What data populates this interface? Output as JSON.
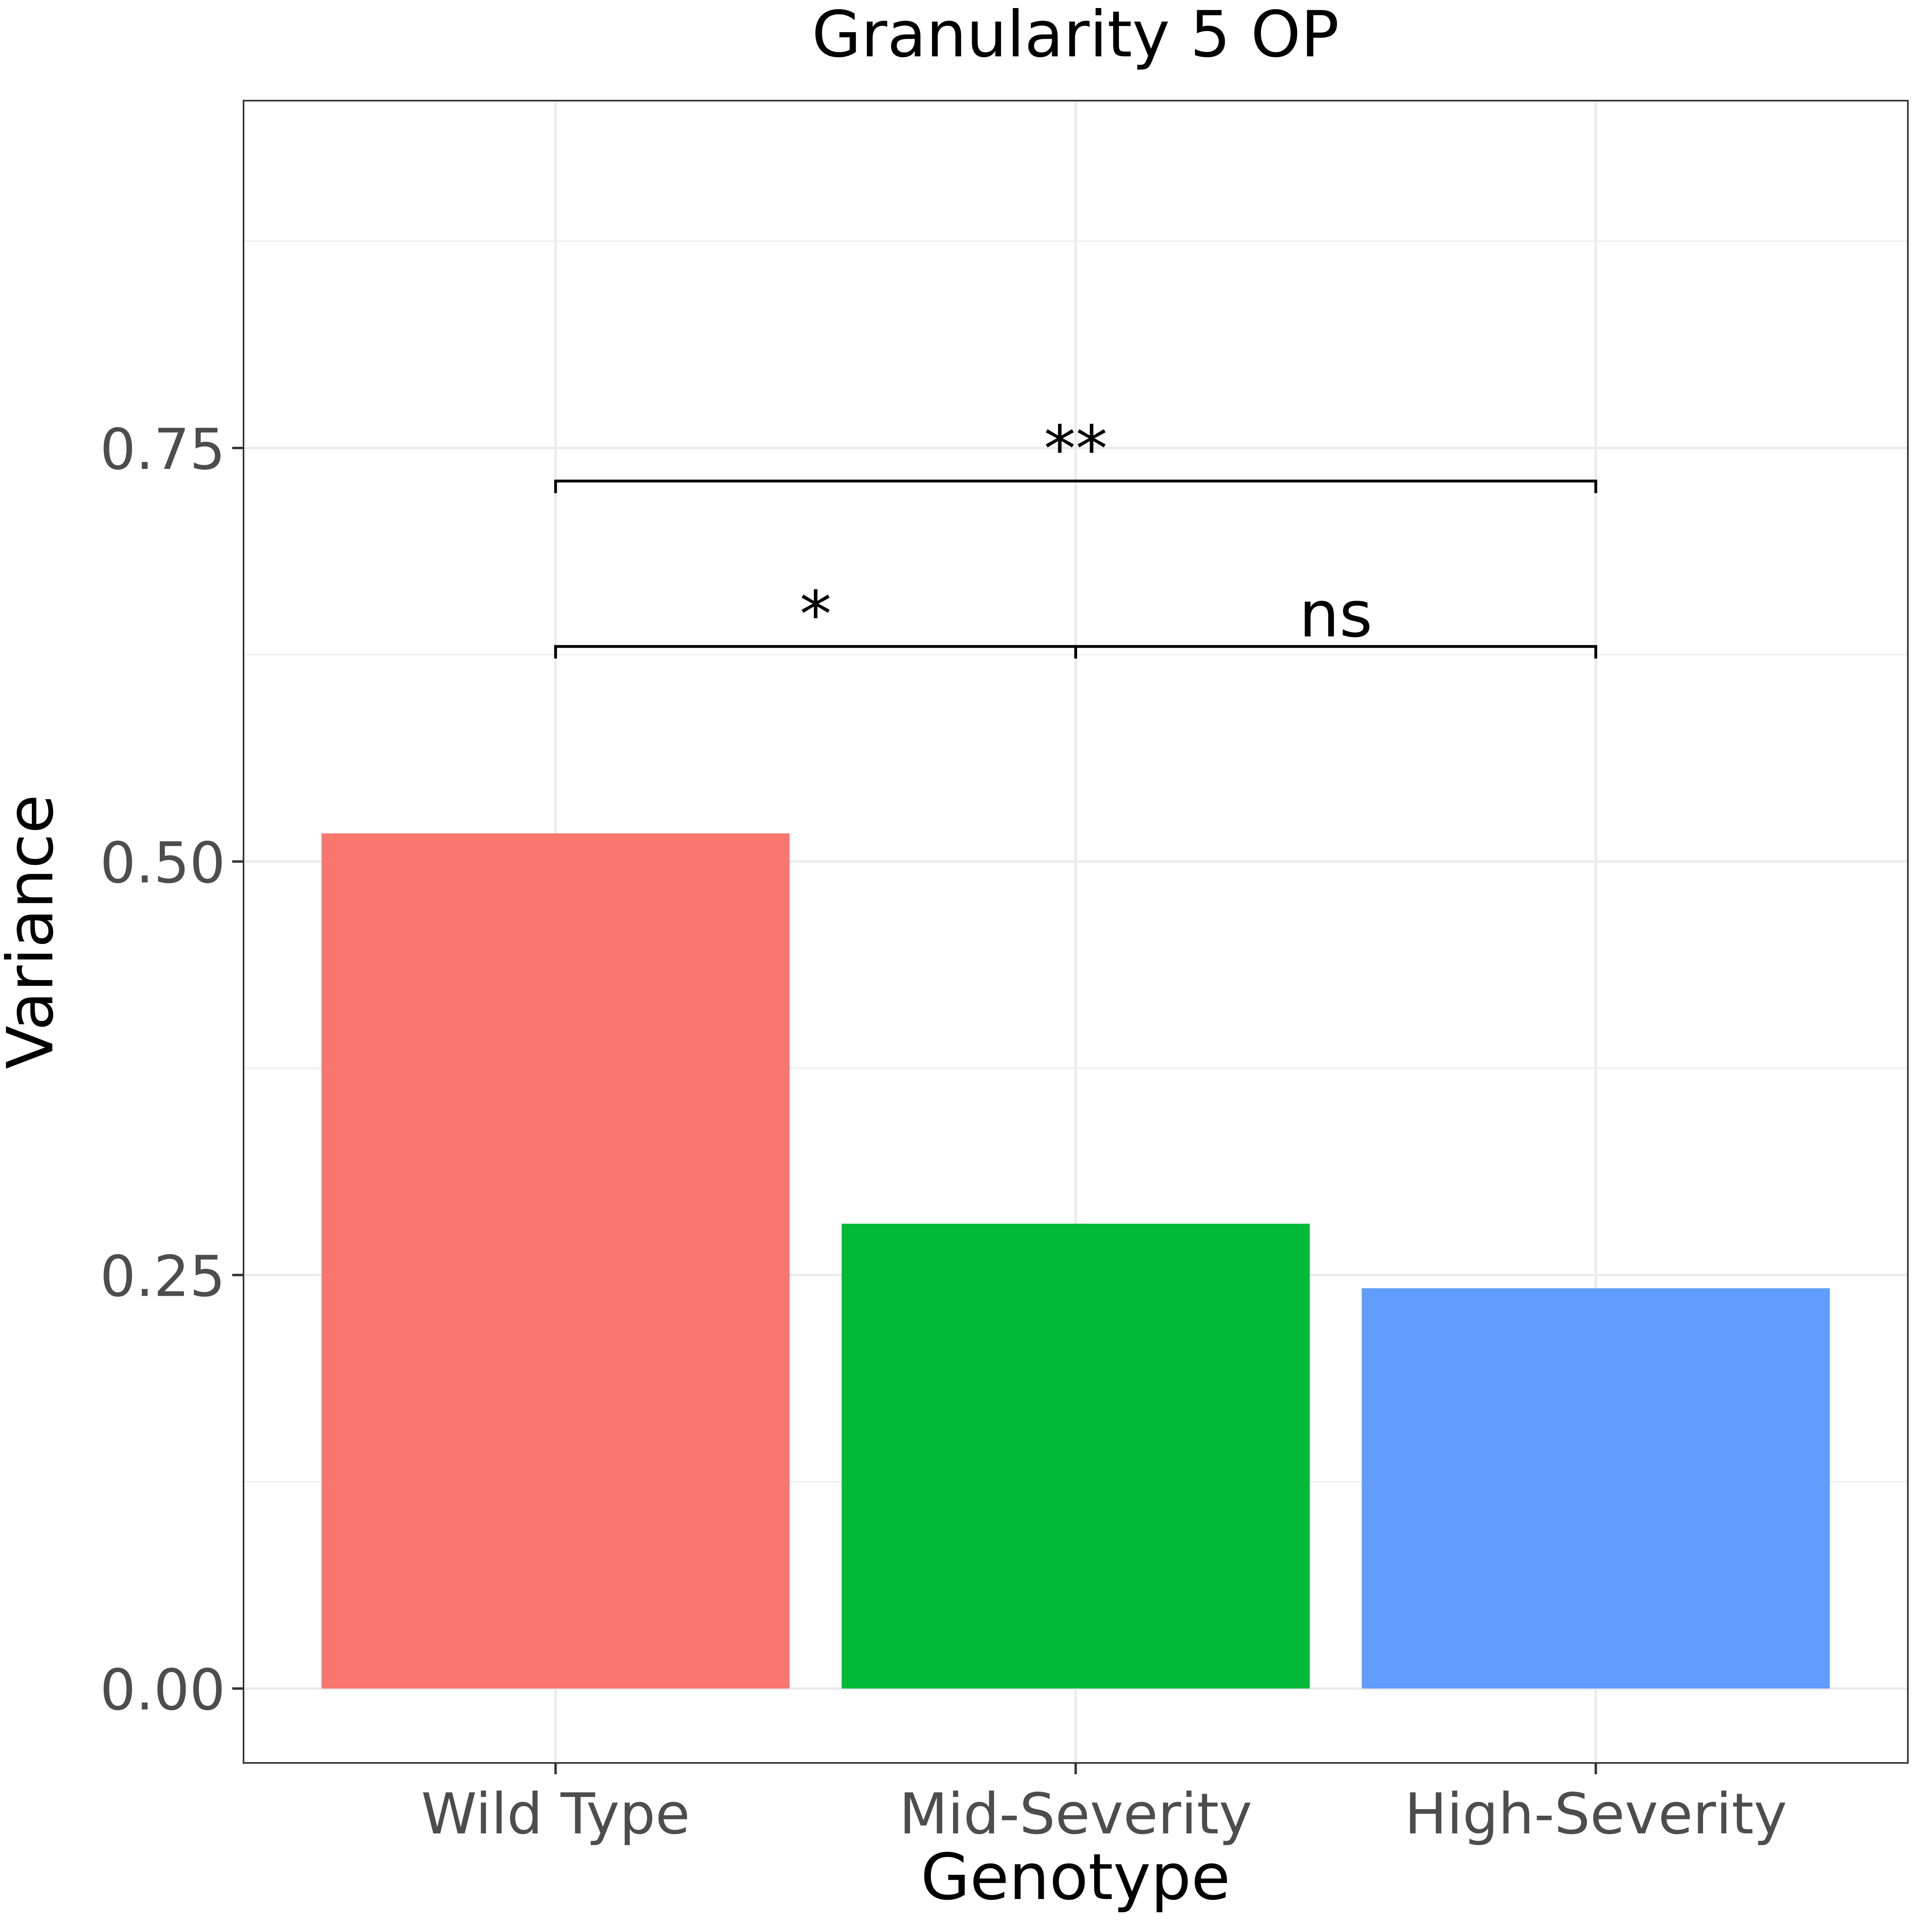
{
  "chart_data": {
    "type": "bar",
    "title": "Granularity 5 OP",
    "xlabel": "Genotype",
    "ylabel": "Variance",
    "categories": [
      "Wild Type",
      "Mid-Severity",
      "High-Severity"
    ],
    "values": [
      0.517,
      0.281,
      0.242
    ],
    "colors": [
      "#F8766D",
      "#00BA38",
      "#619CFF"
    ],
    "ylim": [
      -0.045,
      0.96
    ],
    "yticks": [
      0.0,
      0.25,
      0.5,
      0.75
    ],
    "ytick_labels": [
      "0.00",
      "0.25",
      "0.50",
      "0.75"
    ],
    "grid": true,
    "legend": "none",
    "annotations": [
      {
        "from": "Wild Type",
        "to": "Mid-Severity",
        "y": 0.63,
        "label": "*"
      },
      {
        "from": "Mid-Severity",
        "to": "High-Severity",
        "y": 0.63,
        "label": "ns"
      },
      {
        "from": "Wild Type",
        "to": "High-Severity",
        "y": 0.73,
        "label": "**"
      }
    ]
  }
}
